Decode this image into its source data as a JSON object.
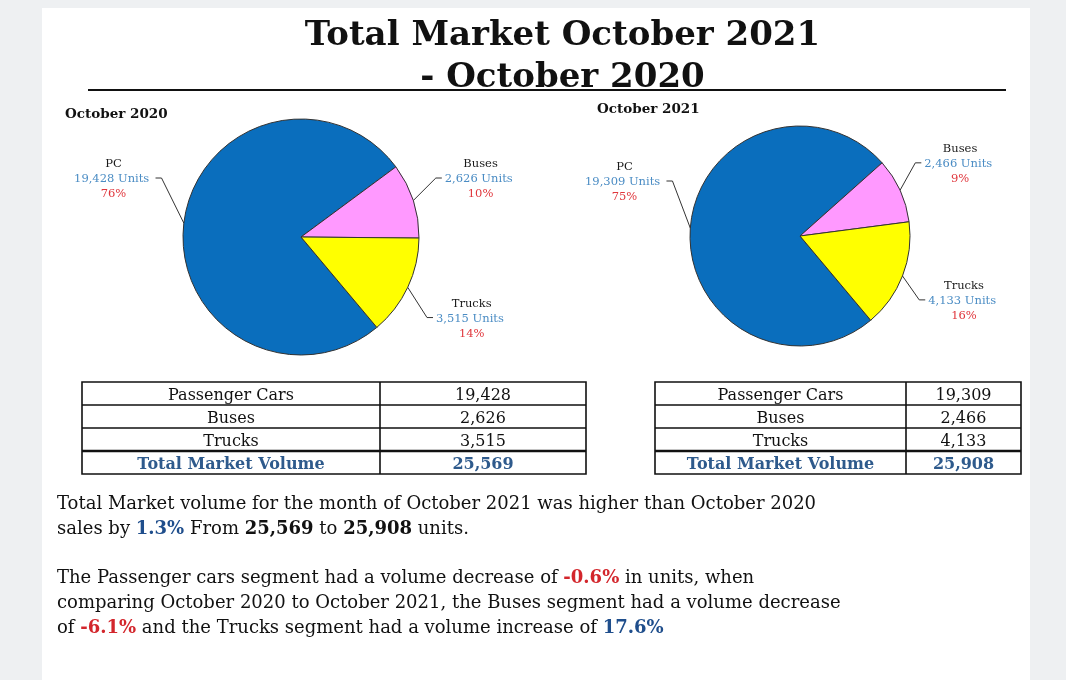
{
  "chart_data": [
    {
      "type": "other",
      "title": "Total Market October 2021 - October 2020"
    },
    {
      "type": "pie",
      "title": "October 2020",
      "categories": [
        "PC",
        "Buses",
        "Trucks"
      ],
      "values": [
        19428,
        2626,
        3515
      ],
      "colors": [
        "#0a6ebd",
        "#ff99ff",
        "#ffff00"
      ],
      "value_labels": [
        "19,428 Units\n76%",
        "2,626 Units\n10%",
        "3,515 Units\n14%"
      ],
      "annotations": [
        "Passenger Cars",
        "19,428",
        "Buses",
        "2,626",
        "Trucks",
        "3,515",
        "Total Market Volume",
        "25,569"
      ]
    },
    {
      "type": "pie",
      "title": "October 2021",
      "categories": [
        "PC",
        "Buses",
        "Trucks"
      ],
      "values": [
        19309,
        2466,
        4133
      ],
      "colors": [
        "#0a6ebd",
        "#ff99ff",
        "#ffff00"
      ],
      "value_labels": [
        "19,309 Units\n75%",
        "2,466 Units\n9%",
        "4,133 Units\n16%"
      ],
      "annotations": [
        "Passenger Cars",
        "19,309",
        "Buses",
        "2,466",
        "Trucks",
        "4,133",
        "Total Market Volume",
        "25,908"
      ]
    },
    {
      "type": "other",
      "annotations": [
        "Total Market volume for the month of October 2021 was higher than October 2020 sales by 1.3% From 25,569 to 25,908 units.",
        "The Passenger cars segment had a volume decrease of -0.6% in units, when comparing October 2020 to October 2021, the Buses segment had a volume decrease of -6.1% and the Trucks segment had a volume increase of 17.6%"
      ]
    }
  ]
}
